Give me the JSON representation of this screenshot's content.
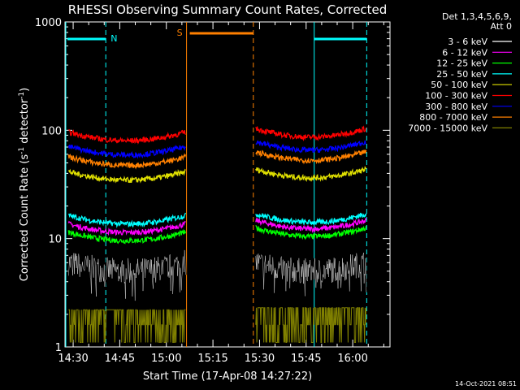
{
  "chart_data": {
    "type": "line",
    "title": "RHESSI Observing Summary Count Rates, Corrected",
    "xlabel": "Start Time (17-Apr-08 14:27:22)",
    "ylabel_main": "Corrected Count Rate (s",
    "ylabel_sup1": "-1",
    "ylabel_mid": " detector",
    "ylabel_sup2": "-1",
    "ylabel_end": ")",
    "yscale": "log",
    "ylim": [
      1,
      1000
    ],
    "x_tick_labels": [
      "14:30",
      "14:45",
      "15:00",
      "15:15",
      "15:30",
      "15:45",
      "16:00"
    ],
    "y_tick_labels": [
      "1",
      "10",
      "100",
      "1000"
    ],
    "legend_header": [
      "Det 1,3,4,5,6,9,",
      "Att 0"
    ],
    "legend_position": "right",
    "footer_timestamp": "14-Oct-2021 08:51",
    "flag_labels": {
      "night_1": "N",
      "saa": "S"
    },
    "colors": {
      "night": "#00ffff",
      "saa": "#ff8000"
    },
    "series": [
      {
        "name": "3 - 6 keV",
        "color": "#000000",
        "seg1": 5.5,
        "seg2": 5.5
      },
      {
        "name": "6 - 12 keV",
        "color": "#ff00ff",
        "seg1": 12.5,
        "seg2": 13.5
      },
      {
        "name": "12 - 25 keV",
        "color": "#00ff00",
        "seg1": 10.5,
        "seg2": 11.5
      },
      {
        "name": "25 - 50 keV",
        "color": "#00ffff",
        "seg1": 15,
        "seg2": 15.5
      },
      {
        "name": "50 - 100 keV",
        "color": "#e0e000",
        "seg1": 38,
        "seg2": 40
      },
      {
        "name": "100 - 300 keV",
        "color": "#ff0000",
        "seg1": 88,
        "seg2": 95
      },
      {
        "name": "300 - 800 keV",
        "color": "#0000ff",
        "seg1": 65,
        "seg2": 72
      },
      {
        "name": "800 - 7000 keV",
        "color": "#ff8000",
        "seg1": 52,
        "seg2": 58
      },
      {
        "name": "7000 - 15000 keV",
        "color": "#808000",
        "seg1": 2.2,
        "seg2": 2.3
      }
    ]
  }
}
